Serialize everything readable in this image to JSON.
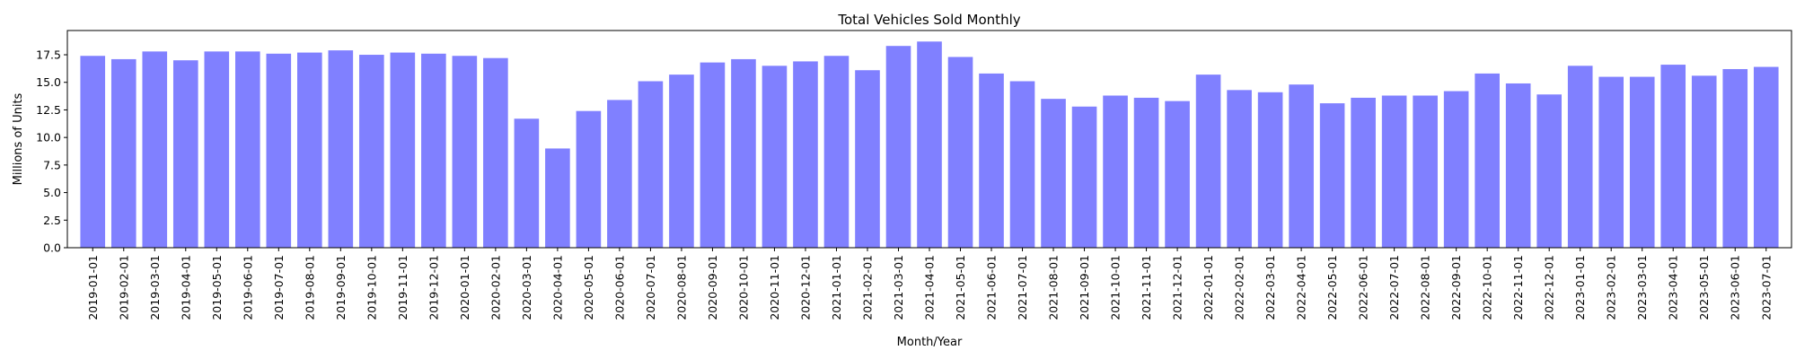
{
  "chart_data": {
    "type": "bar",
    "title": "Total Vehicles Sold Monthly",
    "xlabel": "Month/Year",
    "ylabel": "Millions of Units",
    "ylim": [
      0,
      19.7
    ],
    "yticks": [
      0.0,
      2.5,
      5.0,
      7.5,
      10.0,
      12.5,
      15.0,
      17.5
    ],
    "ytick_labels": [
      "0.0",
      "2.5",
      "5.0",
      "7.5",
      "10.0",
      "12.5",
      "15.0",
      "17.5"
    ],
    "grid": false,
    "bar_color": "#8080ff",
    "categories": [
      "2019-01-01",
      "2019-02-01",
      "2019-03-01",
      "2019-04-01",
      "2019-05-01",
      "2019-06-01",
      "2019-07-01",
      "2019-08-01",
      "2019-09-01",
      "2019-10-01",
      "2019-11-01",
      "2019-12-01",
      "2020-01-01",
      "2020-02-01",
      "2020-03-01",
      "2020-04-01",
      "2020-05-01",
      "2020-06-01",
      "2020-07-01",
      "2020-08-01",
      "2020-09-01",
      "2020-10-01",
      "2020-11-01",
      "2020-12-01",
      "2021-01-01",
      "2021-02-01",
      "2021-03-01",
      "2021-04-01",
      "2021-05-01",
      "2021-06-01",
      "2021-07-01",
      "2021-08-01",
      "2021-09-01",
      "2021-10-01",
      "2021-11-01",
      "2021-12-01",
      "2022-01-01",
      "2022-02-01",
      "2022-03-01",
      "2022-04-01",
      "2022-05-01",
      "2022-06-01",
      "2022-07-01",
      "2022-08-01",
      "2022-09-01",
      "2022-10-01",
      "2022-11-01",
      "2022-12-01",
      "2023-01-01",
      "2023-02-01",
      "2023-03-01",
      "2023-04-01",
      "2023-05-01",
      "2023-06-01",
      "2023-07-01"
    ],
    "values": [
      17.4,
      17.1,
      17.8,
      17.0,
      17.8,
      17.8,
      17.6,
      17.7,
      17.9,
      17.5,
      17.7,
      17.6,
      17.4,
      17.2,
      11.7,
      9.0,
      12.4,
      13.4,
      15.1,
      15.7,
      16.8,
      17.1,
      16.5,
      16.9,
      17.4,
      16.1,
      18.3,
      18.7,
      17.3,
      15.8,
      15.1,
      13.5,
      12.8,
      13.8,
      13.6,
      13.3,
      15.7,
      14.3,
      14.1,
      14.8,
      13.1,
      13.6,
      13.8,
      13.8,
      14.2,
      15.8,
      14.9,
      13.9,
      16.5,
      15.5,
      15.5,
      16.6,
      15.6,
      16.2,
      16.4
    ]
  }
}
